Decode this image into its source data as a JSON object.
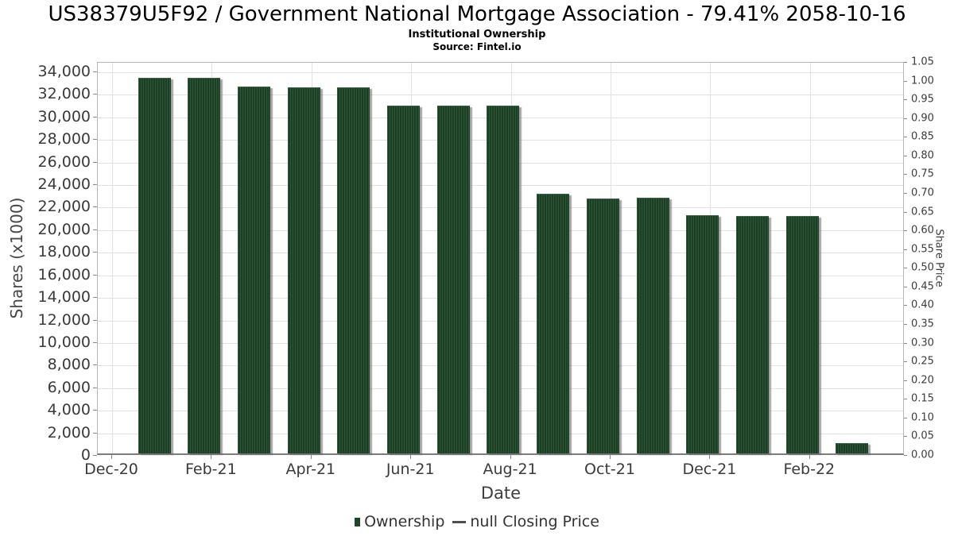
{
  "header": {
    "title": "US38379U5F92 / Government National Mortgage Association - 79.41% 2058-10-16",
    "subtitle": "Institutional Ownership",
    "source": "Source: Fintel.io"
  },
  "chart_data": {
    "type": "bar",
    "title": "US38379U5F92 / Government National Mortgage Association - 79.41% 2058-10-16",
    "subtitle": "Institutional Ownership",
    "source": "Source: Fintel.io",
    "categories": [
      "Dec-20",
      "Jan-21",
      "Feb-21",
      "Mar-21",
      "Apr-21",
      "May-21",
      "Jun-21",
      "Jul-21",
      "Aug-21",
      "Sep-21",
      "Oct-21",
      "Nov-21",
      "Dec-21",
      "Jan-22",
      "Feb-22"
    ],
    "series": [
      {
        "name": "Ownership",
        "axis": "left",
        "values": [
          33300,
          33300,
          32550,
          32450,
          32450,
          30800,
          30820,
          30820,
          23040,
          22620,
          22660,
          21100,
          21080,
          21080,
          950
        ]
      },
      {
        "name": "null Closing Price",
        "axis": "right",
        "values": []
      }
    ],
    "xlabel": "Date",
    "ylabel_left": "Shares (x1000)",
    "ylabel_right": "Share Price",
    "ylim_left": [
      0,
      34000
    ],
    "ytick_step_left": 2000,
    "ylim_right": [
      0.0,
      1.05
    ],
    "ytick_step_right": 0.05,
    "xtick_labels": [
      "Dec-20",
      "Feb-21",
      "Apr-21",
      "Jun-21",
      "Aug-21",
      "Oct-21",
      "Dec-21",
      "Feb-22"
    ],
    "grid": true,
    "legend_position": "bottom"
  },
  "legend": {
    "ownership_label": "Ownership",
    "price_label": "null Closing Price"
  },
  "colors": {
    "bar_stripe_light": "#2e5535",
    "bar_stripe_dark": "#1d3f25",
    "bar_shadow": "#696969",
    "legend_square": "#1e4527",
    "legend_dash": "#4e4e4e",
    "gridline": "#e2e2e2",
    "plot_border": "#b7b7b7",
    "axis_line": "#7d7d7d",
    "tick_text": "#3a3a3a",
    "title_text": "#000000"
  }
}
